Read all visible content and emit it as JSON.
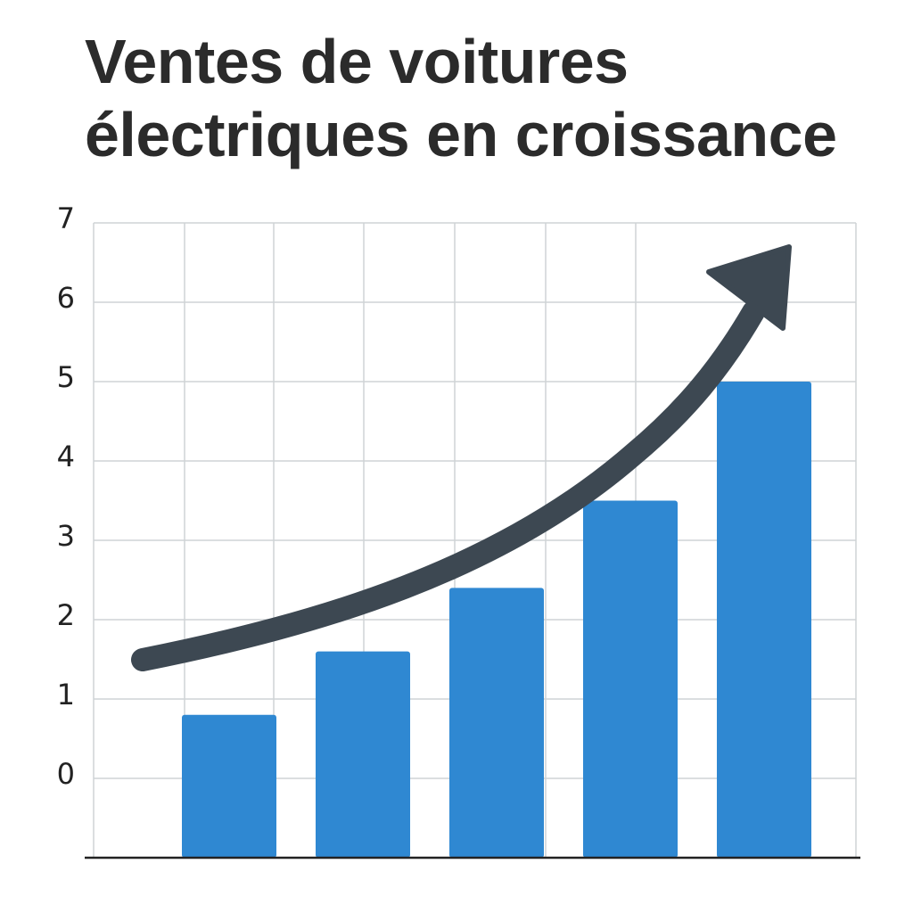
{
  "chart_data": {
    "type": "bar",
    "title": "Ventes de voitures électriques en croissance",
    "categories": [
      null,
      null,
      null,
      null,
      null
    ],
    "values": [
      0.8,
      1.6,
      2.4,
      3.5,
      5.0
    ],
    "color": "#2f88d2",
    "ylim": [
      -1,
      7
    ],
    "yticks": [
      0,
      1,
      2,
      3,
      4,
      5,
      6,
      7
    ],
    "grid": true
  }
}
